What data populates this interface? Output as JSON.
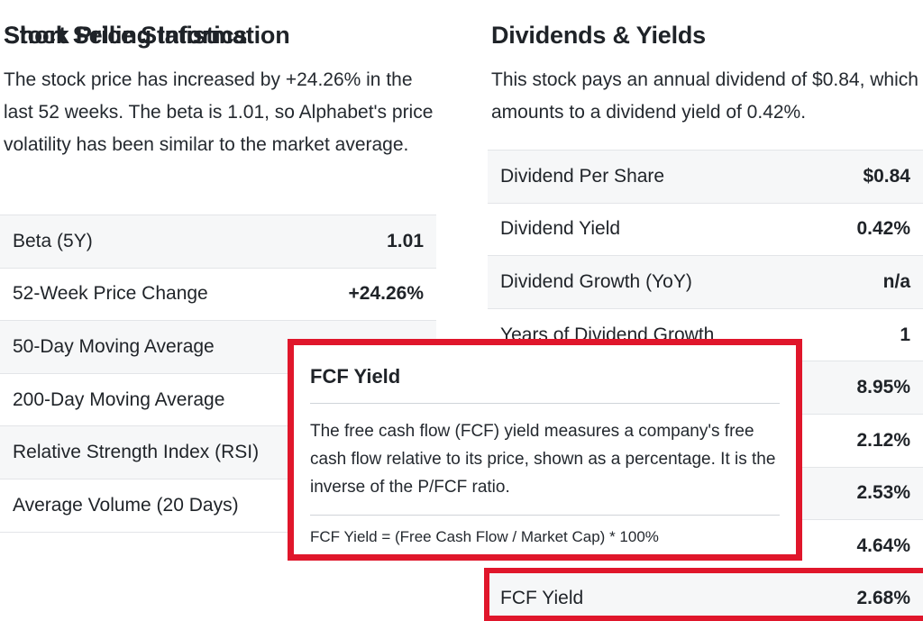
{
  "stock_price_statistics": {
    "title": "Stock Price Statistics",
    "description": "The stock price has increased by +24.26% in the last 52 weeks. The beta is 1.01, so Alphabet's price volatility has been similar to the market average.",
    "rows": [
      {
        "label": "Beta (5Y)",
        "value": "1.01"
      },
      {
        "label": "52-Week Price Change",
        "value": "+24.26%"
      },
      {
        "label": "50-Day Moving Average",
        "value": ""
      },
      {
        "label": "200-Day Moving Average",
        "value": ""
      },
      {
        "label": "Relative Strength Index (RSI)",
        "value": ""
      },
      {
        "label": "Average Volume (20 Days)",
        "value": ""
      }
    ]
  },
  "short_selling": {
    "title": "Short Selling Information"
  },
  "dividends_yields": {
    "title": "Dividends & Yields",
    "description": "This stock pays an annual dividend of $0.84, which amounts to a dividend yield of 0.42%.",
    "rows": [
      {
        "label": "Dividend Per Share",
        "value": "$0.84"
      },
      {
        "label": "Dividend Yield",
        "value": "0.42%"
      },
      {
        "label": "Dividend Growth (YoY)",
        "value": "n/a"
      },
      {
        "label": "Years of Dividend Growth",
        "value": "1"
      },
      {
        "label": "",
        "value": "8.95%"
      },
      {
        "label": "",
        "value": "2.12%"
      },
      {
        "label": "",
        "value": "2.53%"
      },
      {
        "label": "",
        "value": "4.64%"
      }
    ],
    "highlighted_row": {
      "label": "FCF Yield",
      "value": "2.68%"
    }
  },
  "tooltip": {
    "title": "FCF Yield",
    "description": "The free cash flow (FCF) yield measures a company's free cash flow relative to its price, shown as a percentage. It is the inverse of the P/FCF ratio.",
    "formula": "FCF Yield = (Free Cash Flow / Market Cap) * 100%"
  },
  "colors": {
    "highlight_border": "#e0162b",
    "row_stripe": "#f6f7f8"
  }
}
